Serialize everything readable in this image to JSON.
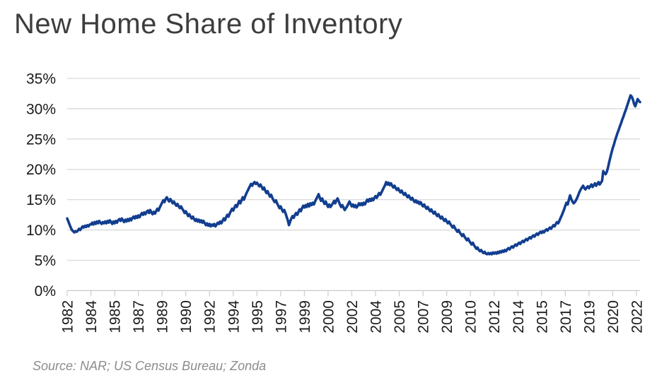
{
  "title": "New Home Share of Inventory",
  "source_note": "Source: NAR; US Census Bureau; Zonda",
  "colors": {
    "line": "#123e8f",
    "grid": "#d9d9d9",
    "axis": "#c9c9c9",
    "tick": "#d0d0d0",
    "title_text": "#3d3d3d",
    "axis_text": "#1a1a1a",
    "source_text": "#8c8c8c",
    "background": "#ffffff"
  },
  "chart_data": {
    "type": "line",
    "title": "New Home Share of Inventory",
    "xlabel": "",
    "ylabel": "",
    "x_start": "1982-05",
    "frequency": "monthly",
    "grid": "horizontal",
    "legend": "none",
    "ylim": [
      0,
      35
    ],
    "y_tick_labels": [
      "35%",
      "30%",
      "25%",
      "20%",
      "15%",
      "10%",
      "5%",
      "0%"
    ],
    "y_tick_values": [
      35,
      30,
      25,
      20,
      15,
      10,
      5,
      0
    ],
    "x_tick_labels": [
      "1982",
      "1984",
      "1985",
      "1987",
      "1989",
      "1990",
      "1992",
      "1994",
      "1995",
      "1997",
      "1999",
      "2000",
      "2002",
      "2004",
      "2005",
      "2007",
      "2009",
      "2010",
      "2012",
      "2014",
      "2015",
      "2017",
      "2019",
      "2020",
      "2022"
    ],
    "x_tick_interval_points": 20,
    "series": [
      {
        "name": "New Home Share of Inventory",
        "unit": "%",
        "values": [
          11.9,
          11.4,
          10.9,
          10.4,
          10.0,
          9.8,
          9.6,
          9.8,
          9.7,
          9.9,
          10.2,
          10.0,
          10.3,
          10.6,
          10.4,
          10.7,
          10.5,
          10.8,
          10.6,
          10.9,
          10.9,
          11.2,
          10.9,
          11.3,
          11.0,
          11.4,
          11.1,
          11.5,
          11.2,
          11.0,
          11.3,
          11.1,
          11.4,
          11.1,
          11.5,
          11.2,
          11.6,
          11.3,
          11.0,
          11.4,
          11.1,
          11.5,
          11.2,
          11.6,
          11.8,
          11.5,
          11.9,
          11.6,
          11.3,
          11.7,
          11.4,
          11.8,
          11.5,
          11.9,
          11.6,
          12.0,
          12.2,
          11.9,
          12.3,
          12.0,
          12.4,
          12.1,
          12.5,
          12.8,
          12.5,
          12.9,
          12.6,
          13.0,
          13.2,
          12.8,
          13.3,
          12.9,
          12.6,
          13.0,
          12.7,
          13.1,
          13.5,
          13.2,
          13.7,
          14.1,
          14.5,
          14.9,
          14.6,
          15.1,
          15.4,
          15.0,
          14.7,
          15.1,
          14.8,
          14.4,
          14.7,
          14.3,
          14.0,
          14.3,
          13.9,
          13.6,
          13.9,
          13.5,
          13.2,
          12.8,
          13.1,
          12.7,
          12.3,
          12.6,
          12.2,
          11.9,
          12.2,
          11.8,
          11.5,
          11.8,
          11.4,
          11.7,
          11.3,
          11.6,
          11.2,
          11.5,
          11.1,
          10.8,
          11.1,
          10.7,
          11.0,
          10.6,
          10.9,
          10.7,
          11.0,
          10.6,
          10.9,
          11.2,
          11.0,
          11.4,
          11.1,
          11.5,
          11.9,
          11.6,
          12.1,
          12.5,
          12.2,
          12.7,
          13.1,
          13.5,
          13.2,
          13.7,
          14.1,
          13.8,
          14.3,
          14.8,
          14.4,
          14.9,
          15.4,
          15.0,
          15.5,
          16.0,
          16.4,
          16.8,
          17.2,
          17.6,
          17.3,
          17.7,
          17.9,
          17.6,
          17.8,
          17.5,
          17.2,
          17.5,
          17.1,
          16.7,
          17.0,
          16.5,
          16.1,
          16.4,
          15.9,
          15.5,
          15.8,
          15.3,
          14.9,
          14.6,
          14.9,
          14.4,
          14.0,
          13.6,
          13.9,
          13.4,
          13.0,
          13.3,
          12.8,
          12.2,
          11.6,
          10.8,
          11.4,
          11.9,
          12.3,
          12.0,
          12.5,
          12.8,
          12.5,
          13.0,
          13.4,
          13.1,
          13.6,
          14.0,
          13.7,
          14.1,
          13.8,
          14.3,
          13.9,
          14.4,
          14.1,
          14.5,
          14.2,
          14.7,
          15.1,
          15.5,
          15.9,
          15.3,
          14.8,
          15.2,
          14.7,
          14.3,
          14.7,
          14.2,
          13.8,
          14.2,
          13.8,
          14.1,
          14.4,
          14.8,
          14.4,
          14.9,
          15.2,
          14.7,
          14.2,
          13.8,
          14.1,
          13.7,
          13.3,
          13.6,
          13.9,
          14.3,
          14.7,
          14.3,
          13.9,
          14.2,
          13.8,
          14.1,
          13.7,
          14.0,
          14.4,
          14.1,
          14.4,
          14.1,
          14.5,
          14.2,
          14.6,
          15.0,
          14.7,
          15.1,
          14.8,
          15.2,
          14.9,
          15.3,
          15.6,
          15.3,
          15.7,
          16.1,
          15.8,
          16.2,
          16.6,
          17.0,
          17.4,
          17.9,
          17.5,
          17.8,
          17.4,
          17.7,
          17.3,
          17.0,
          17.3,
          16.9,
          16.6,
          16.9,
          16.5,
          16.2,
          16.5,
          16.1,
          15.8,
          16.1,
          15.7,
          15.4,
          15.7,
          15.3,
          15.0,
          15.3,
          14.9,
          14.6,
          14.9,
          14.5,
          14.7,
          14.3,
          14.6,
          14.2,
          13.9,
          14.2,
          13.8,
          13.5,
          13.8,
          13.4,
          13.1,
          13.4,
          13.0,
          12.7,
          13.0,
          12.6,
          12.3,
          12.6,
          12.2,
          11.9,
          12.2,
          11.8,
          11.5,
          11.8,
          11.4,
          11.1,
          11.4,
          11.0,
          10.7,
          10.4,
          10.7,
          10.3,
          10.0,
          9.7,
          10.0,
          9.6,
          9.3,
          9.0,
          9.3,
          8.9,
          8.6,
          8.3,
          8.6,
          8.2,
          7.9,
          7.6,
          7.9,
          7.5,
          7.2,
          6.9,
          7.1,
          6.7,
          6.5,
          6.7,
          6.4,
          6.2,
          6.4,
          6.1,
          6.0,
          6.2,
          6.0,
          6.2,
          6.0,
          6.3,
          6.1,
          6.3,
          6.1,
          6.4,
          6.2,
          6.5,
          6.3,
          6.6,
          6.4,
          6.7,
          6.5,
          6.8,
          7.0,
          6.8,
          7.1,
          7.3,
          7.1,
          7.4,
          7.6,
          7.4,
          7.7,
          7.9,
          7.7,
          8.0,
          8.2,
          8.0,
          8.3,
          8.5,
          8.3,
          8.6,
          8.8,
          8.6,
          8.9,
          9.1,
          8.9,
          9.2,
          9.4,
          9.2,
          9.5,
          9.7,
          9.5,
          9.8,
          9.6,
          9.9,
          10.1,
          9.9,
          10.2,
          10.4,
          10.2,
          10.5,
          10.8,
          10.6,
          11.0,
          11.3,
          11.1,
          11.5,
          12.0,
          12.4,
          12.9,
          13.4,
          14.0,
          14.5,
          14.2,
          15.0,
          15.7,
          15.1,
          14.7,
          14.4,
          14.6,
          14.9,
          15.3,
          15.8,
          16.3,
          16.7,
          17.0,
          17.3,
          16.9,
          16.7,
          17.0,
          17.2,
          16.9,
          17.2,
          17.5,
          17.1,
          17.4,
          17.7,
          17.3,
          17.6,
          17.9,
          17.5,
          17.8,
          18.1,
          19.7,
          19.4,
          19.2,
          19.6,
          20.3,
          21.2,
          22.0,
          22.8,
          23.5,
          24.1,
          24.8,
          25.4,
          26.0,
          26.5,
          27.1,
          27.6,
          28.2,
          28.7,
          29.3,
          29.8,
          30.4,
          31.0,
          31.6,
          32.2,
          32.0,
          31.5,
          30.8,
          30.4,
          31.0,
          31.6,
          31.3,
          31.1
        ]
      }
    ]
  }
}
